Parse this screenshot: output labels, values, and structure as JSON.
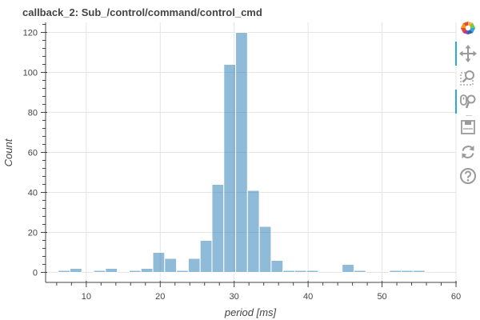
{
  "chart_data": {
    "type": "bar",
    "title": "callback_2: Sub_/control/command/control_cmd",
    "xlabel": "period [ms]",
    "ylabel": "Count",
    "xlim": [
      4.5,
      60
    ],
    "ylim": [
      -5,
      125
    ],
    "xticks": [
      10,
      20,
      30,
      40,
      50,
      60
    ],
    "yticks": [
      0,
      20,
      40,
      60,
      80,
      100,
      120
    ],
    "bin_width": 1.6,
    "bins": [
      {
        "start": 6.2,
        "count": 1
      },
      {
        "start": 7.8,
        "count": 2
      },
      {
        "start": 9.4,
        "count": 0
      },
      {
        "start": 11.0,
        "count": 1
      },
      {
        "start": 12.6,
        "count": 2
      },
      {
        "start": 14.2,
        "count": 0
      },
      {
        "start": 15.8,
        "count": 1
      },
      {
        "start": 17.4,
        "count": 2
      },
      {
        "start": 19.0,
        "count": 10
      },
      {
        "start": 20.6,
        "count": 7
      },
      {
        "start": 22.2,
        "count": 1
      },
      {
        "start": 23.8,
        "count": 7
      },
      {
        "start": 25.4,
        "count": 16
      },
      {
        "start": 27.0,
        "count": 44
      },
      {
        "start": 28.6,
        "count": 104
      },
      {
        "start": 30.2,
        "count": 120
      },
      {
        "start": 31.8,
        "count": 41
      },
      {
        "start": 33.4,
        "count": 23
      },
      {
        "start": 35.0,
        "count": 6
      },
      {
        "start": 36.6,
        "count": 1
      },
      {
        "start": 38.2,
        "count": 1
      },
      {
        "start": 39.8,
        "count": 1
      },
      {
        "start": 41.4,
        "count": 0
      },
      {
        "start": 43.0,
        "count": 0
      },
      {
        "start": 44.6,
        "count": 4
      },
      {
        "start": 46.2,
        "count": 1
      },
      {
        "start": 47.8,
        "count": 0
      },
      {
        "start": 49.4,
        "count": 0
      },
      {
        "start": 51.0,
        "count": 1
      },
      {
        "start": 52.6,
        "count": 1
      },
      {
        "start": 54.2,
        "count": 1
      },
      {
        "start": 55.8,
        "count": 0
      },
      {
        "start": 57.4,
        "count": 0
      }
    ],
    "bar_color": "#1f77b4",
    "grid": true
  },
  "toolbar": {
    "tools": [
      {
        "name": "bokeh-logo",
        "icon": "bokeh-logo-icon",
        "active": false
      },
      {
        "name": "pan-tool",
        "icon": "pan-icon",
        "active": true
      },
      {
        "name": "box-zoom-tool",
        "icon": "box-zoom-icon",
        "active": false
      },
      {
        "name": "wheel-zoom-tool",
        "icon": "wheel-zoom-icon",
        "active": true
      },
      {
        "name": "save-tool",
        "icon": "save-icon",
        "active": false
      },
      {
        "name": "reset-tool",
        "icon": "reset-icon",
        "active": false
      },
      {
        "name": "help-tool",
        "icon": "help-icon",
        "active": false
      }
    ],
    "accent": "#26aae1"
  }
}
